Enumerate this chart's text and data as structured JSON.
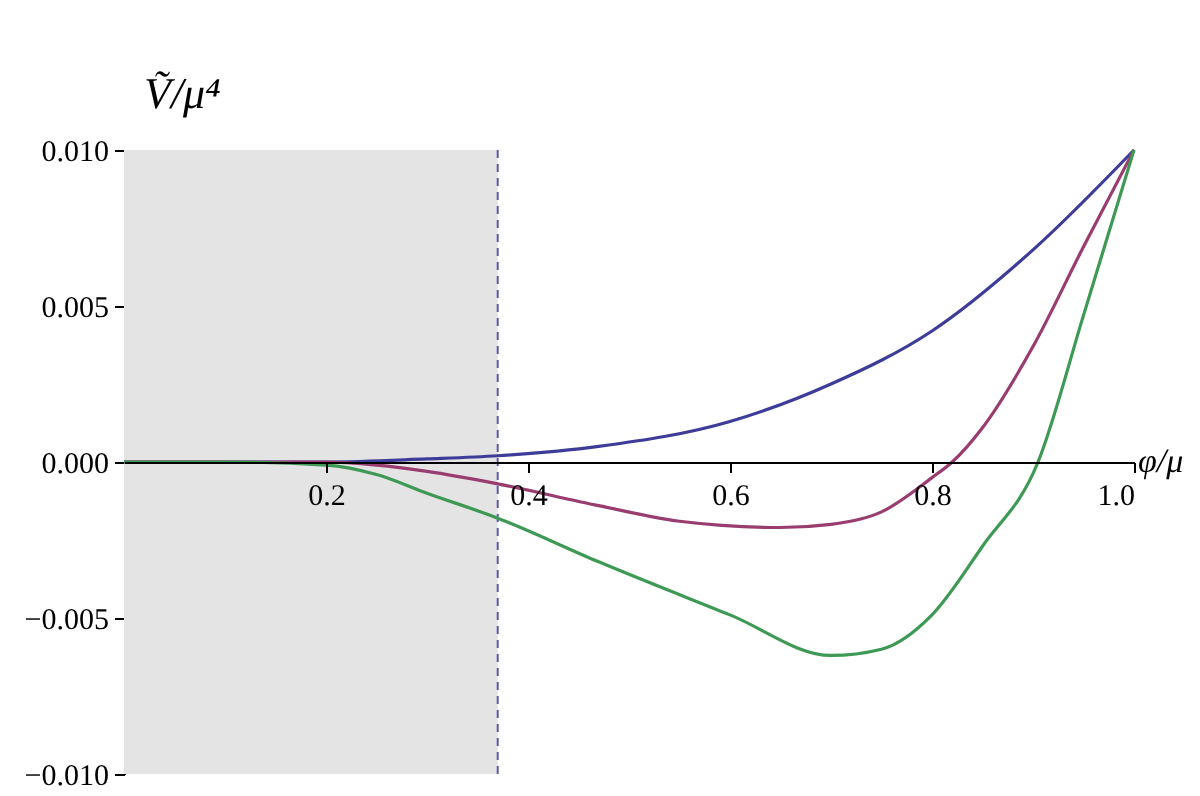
{
  "chart_data": {
    "type": "line",
    "xlabel": "φ/μ",
    "ylabel": "Ṽ/μ⁴",
    "xlim": [
      0,
      1
    ],
    "ylim": [
      -0.01,
      0.01
    ],
    "xticks": [
      0.2,
      0.4,
      0.6,
      0.8,
      {
        "value": 1,
        "label": "1.0"
      }
    ],
    "yticks": [
      {
        "value": -0.01,
        "label": "−0.010"
      },
      {
        "value": -0.005,
        "label": "−0.005"
      },
      {
        "value": 0,
        "label": "0.000"
      },
      {
        "value": 0.005,
        "label": "0.005"
      },
      {
        "value": 0.01,
        "label": "0.010"
      }
    ],
    "grid": false,
    "bands": [
      {
        "axis": "x",
        "from": 0,
        "to": 0.37,
        "color": "#e4e4e4"
      }
    ],
    "ref_lines": [
      {
        "axis": "x",
        "value": 0.37,
        "color": "#5a5aa8",
        "line_style": "dashed"
      }
    ],
    "series": [
      {
        "color": "#3d3d99",
        "x": [
          0,
          0.1,
          0.2,
          0.3,
          0.37,
          0.47,
          0.6,
          0.7,
          0.8,
          0.9,
          1.0
        ],
        "values": [
          0,
          0,
          0,
          0.0001,
          0.0002,
          0.0005,
          0.0013,
          0.0025,
          0.0042,
          0.0068,
          0.01
        ]
      },
      {
        "color": "#993d71",
        "x": [
          0,
          0.1,
          0.2,
          0.25,
          0.3,
          0.37,
          0.47,
          0.55,
          0.65,
          0.7,
          0.75,
          0.8,
          0.82,
          0.85,
          0.9,
          0.95,
          1.0
        ],
        "values": [
          0,
          0,
          0,
          -0.0001,
          -0.0003,
          -0.0007,
          -0.0014,
          -0.0019,
          -0.0021,
          -0.002,
          -0.0016,
          -0.0005,
          0,
          0.0011,
          0.0037,
          0.0069,
          0.01
        ]
      },
      {
        "color": "#3d9954",
        "x": [
          0,
          0.1,
          0.2,
          0.25,
          0.3,
          0.37,
          0.47,
          0.6,
          0.7,
          0.75,
          0.8,
          0.85,
          0.905,
          0.95,
          1.0
        ],
        "values": [
          0,
          0,
          -0.0001,
          -0.0004,
          -0.001,
          -0.0018,
          -0.0032,
          -0.0049,
          -0.0062,
          -0.006,
          -0.0049,
          -0.0027,
          0,
          0.0047,
          0.01
        ]
      }
    ]
  }
}
